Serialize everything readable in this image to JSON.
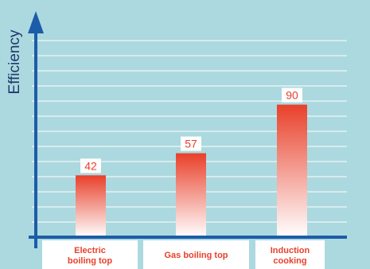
{
  "chart_data": {
    "type": "bar",
    "title": "",
    "ylabel": "Efficiency",
    "xlabel": "",
    "categories": [
      [
        "Electric",
        "boiling top"
      ],
      [
        "Gas boiling top"
      ],
      [
        "Induction",
        "cooking"
      ]
    ],
    "values": [
      42,
      57,
      90
    ],
    "ylim": [
      0,
      140
    ],
    "grid": true,
    "legend": "none",
    "colors": {
      "background": "#acd9df",
      "gridline": "#ffffff",
      "axis": "#1d5ca8",
      "bar_top": "#e8402a",
      "bar_bottom": "#ffffff",
      "text_accent": "#e8402a",
      "ylabel_text": "#1f3a6e"
    }
  }
}
